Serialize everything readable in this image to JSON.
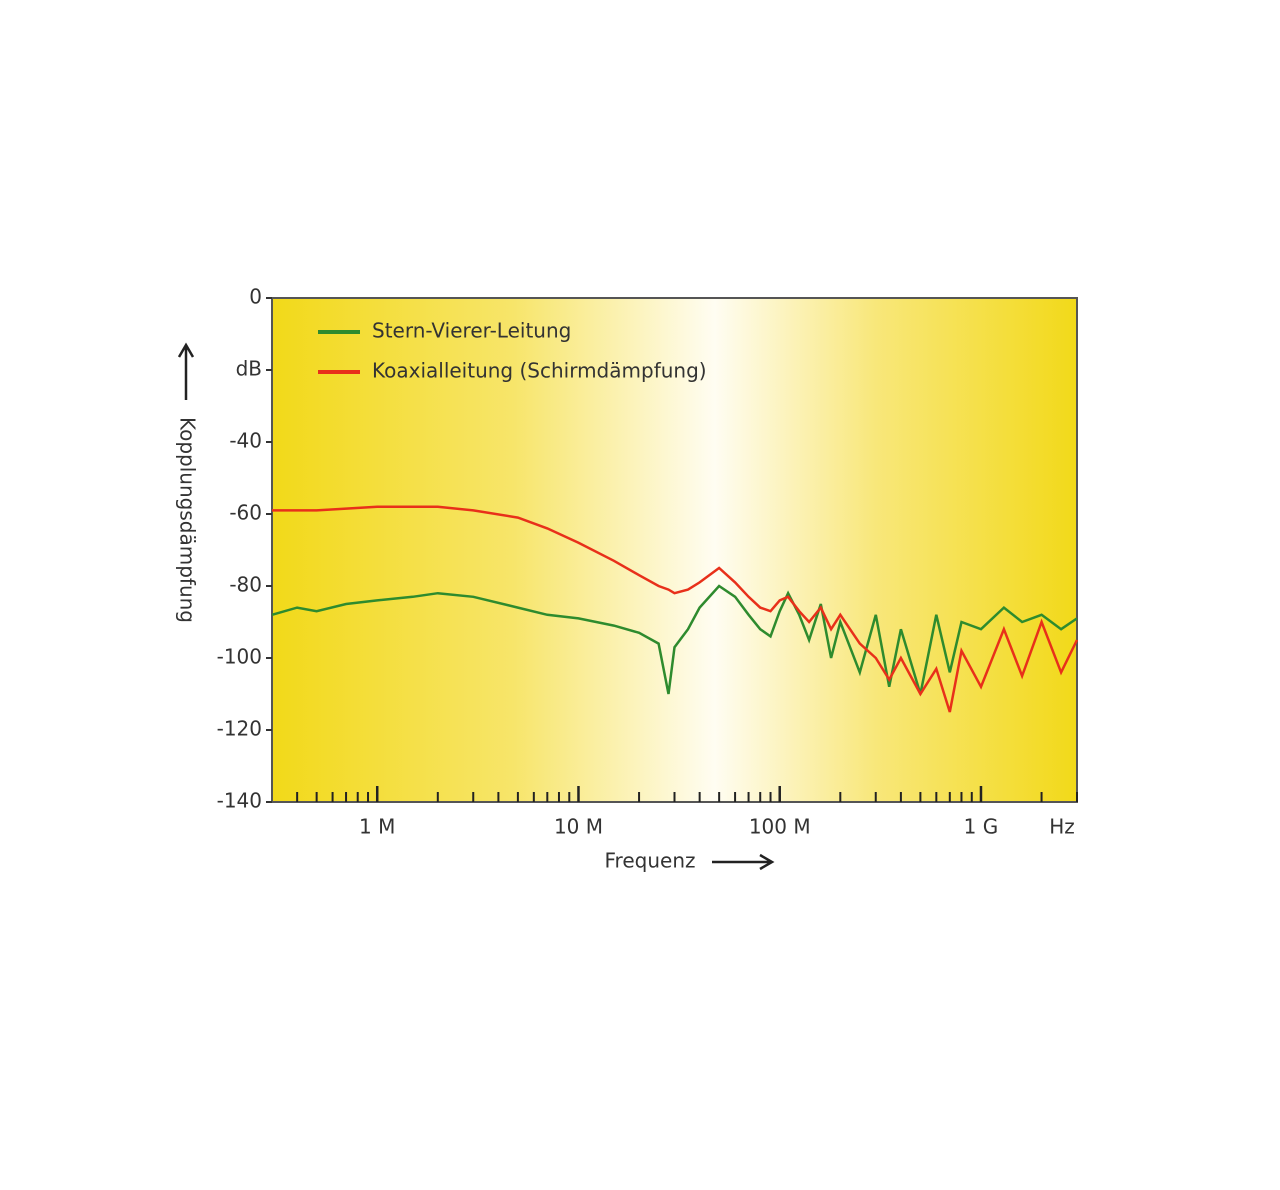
{
  "chart_data": {
    "type": "line",
    "x_label": "Frequenz",
    "x_unit": "Hz",
    "y_label": "Kopplungsdämpfung",
    "x_scale": "log",
    "xlim": [
      300000,
      3000000000
    ],
    "xticks": [
      {
        "value": 1000000,
        "label": "1 M"
      },
      {
        "value": 10000000,
        "label": "10 M"
      },
      {
        "value": 100000000,
        "label": "100 M"
      },
      {
        "value": 1000000000,
        "label": "1 G"
      }
    ],
    "xminorticks": [
      400000,
      500000,
      600000,
      700000,
      800000,
      900000,
      2000000,
      3000000,
      4000000,
      5000000,
      6000000,
      7000000,
      8000000,
      9000000,
      20000000,
      30000000,
      40000000,
      50000000,
      60000000,
      70000000,
      80000000,
      90000000,
      200000000,
      300000000,
      400000000,
      500000000,
      600000000,
      700000000,
      800000000,
      900000000,
      2000000000,
      3000000000
    ],
    "ylim": [
      -140,
      0
    ],
    "yticks": [
      0,
      {
        "value": -20,
        "label": "dB"
      },
      -40,
      -60,
      -80,
      -100,
      -120,
      -140
    ],
    "legend": "upper left",
    "x": [
      300000,
      400000,
      500000,
      700000,
      1000000,
      1500000,
      2000000,
      3000000,
      5000000,
      7000000,
      10000000,
      15000000,
      20000000,
      25000000,
      28000000,
      30000000,
      35000000,
      40000000,
      50000000,
      60000000,
      70000000,
      80000000,
      90000000,
      100000000,
      110000000,
      125000000,
      140000000,
      160000000,
      180000000,
      200000000,
      250000000,
      300000000,
      350000000,
      400000000,
      500000000,
      600000000,
      700000000,
      800000000,
      1000000000,
      1300000000,
      1600000000,
      2000000000,
      2500000000,
      3000000000
    ],
    "series": [
      {
        "name": "Stern-Vierer-Leitung",
        "color": "#2e8b2e",
        "values": [
          -88,
          -86,
          -87,
          -85,
          -84,
          -83,
          -82,
          -83,
          -86,
          -88,
          -89,
          -91,
          -93,
          -96,
          -110,
          -97,
          -92,
          -86,
          -80,
          -83,
          -88,
          -92,
          -94,
          -87,
          -82,
          -88,
          -95,
          -85,
          -100,
          -90,
          -104,
          -88,
          -108,
          -92,
          -110,
          -88,
          -104,
          -90,
          -92,
          -86,
          -90,
          -88,
          -92,
          -89
        ]
      },
      {
        "name": "Koaxialleitung (Schirmdämpfung)",
        "color": "#e8301a",
        "values": [
          -59,
          -59,
          -59,
          -58.5,
          -58,
          -58,
          -58,
          -59,
          -61,
          -64,
          -68,
          -73,
          -77,
          -80,
          -81,
          -82,
          -81,
          -79,
          -75,
          -79,
          -83,
          -86,
          -87,
          -84,
          -83,
          -87,
          -90,
          -86,
          -92,
          -88,
          -96,
          -100,
          -106,
          -100,
          -110,
          -103,
          -115,
          -98,
          -108,
          -92,
          -105,
          -90,
          -104,
          -95
        ]
      }
    ]
  }
}
